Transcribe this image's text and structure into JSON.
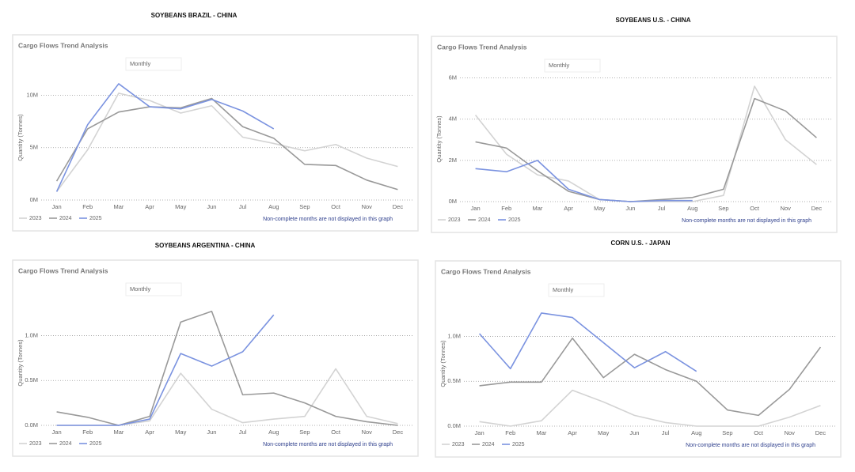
{
  "chart_data": [
    {
      "type": "line",
      "title": "SOYBEANS BRAZIL - CHINA",
      "subtitle": "Cargo Flows Trend Analysis",
      "filter": "Monthly",
      "ylabel": "Quantity (Tonnes)",
      "note": "Non-complete months are not displayed in this graph",
      "categories": [
        "Jan",
        "Feb",
        "Mar",
        "Apr",
        "May",
        "Jun",
        "Jul",
        "Aug",
        "Sep",
        "Oct",
        "Nov",
        "Dec"
      ],
      "series": [
        {
          "name": "2023",
          "color": "#d3d3d3",
          "values": [
            800000,
            4800000,
            10200000,
            9500000,
            8300000,
            9000000,
            6000000,
            5400000,
            4700000,
            5300000,
            4000000,
            3200000
          ]
        },
        {
          "name": "2024",
          "color": "#999999",
          "values": [
            1800000,
            6800000,
            8400000,
            8900000,
            8800000,
            9700000,
            7000000,
            5900000,
            3400000,
            3300000,
            1900000,
            1000000
          ]
        },
        {
          "name": "2025",
          "color": "#7b93e0",
          "values": [
            800000,
            7200000,
            11100000,
            8900000,
            8700000,
            9600000,
            8500000,
            6800000,
            null,
            null,
            null,
            null
          ]
        }
      ],
      "ylim": [
        0,
        12000000
      ],
      "yticks": [
        {
          "value": 0,
          "label": "0M"
        },
        {
          "value": 5000000,
          "label": "5M"
        },
        {
          "value": 10000000,
          "label": "10M"
        }
      ],
      "grid": true
    },
    {
      "type": "line",
      "title": "SOYBEANS U.S. - CHINA",
      "subtitle": "Cargo Flows Trend Analysis",
      "filter": "Monthly",
      "ylabel": "Quantity (Tonnes)",
      "note": "Non-complete months are not displayed in this graph",
      "categories": [
        "Jan",
        "Feb",
        "Mar",
        "Apr",
        "May",
        "Jun",
        "Jul",
        "Aug",
        "Sep",
        "Oct",
        "Nov",
        "Dec"
      ],
      "series": [
        {
          "name": "2023",
          "color": "#d3d3d3",
          "values": [
            4200000,
            2300000,
            1300000,
            1000000,
            100000,
            0,
            0,
            0,
            300000,
            5600000,
            3000000,
            1800000
          ]
        },
        {
          "name": "2024",
          "color": "#999999",
          "values": [
            2900000,
            2600000,
            1500000,
            500000,
            100000,
            0,
            100000,
            200000,
            600000,
            5000000,
            4400000,
            3100000
          ]
        },
        {
          "name": "2025",
          "color": "#7b93e0",
          "values": [
            1600000,
            1450000,
            2000000,
            600000,
            100000,
            0,
            50000,
            50000,
            null,
            null,
            null,
            null
          ]
        }
      ],
      "ylim": [
        0,
        6100000
      ],
      "yticks": [
        {
          "value": 0,
          "label": "0M"
        },
        {
          "value": 2000000,
          "label": "2M"
        },
        {
          "value": 4000000,
          "label": "4M"
        },
        {
          "value": 6000000,
          "label": "6M"
        }
      ],
      "grid": true
    },
    {
      "type": "line",
      "title": "SOYBEANS ARGENTINA - CHINA",
      "subtitle": "Cargo Flows Trend Analysis",
      "filter": "Monthly",
      "ylabel": "Quantity (Tonnes)",
      "note": "Non-complete months are not displayed in this graph",
      "categories": [
        "Jan",
        "Feb",
        "Mar",
        "Apr",
        "May",
        "Jun",
        "Jul",
        "Aug",
        "Sep",
        "Oct",
        "Nov",
        "Dec"
      ],
      "series": [
        {
          "name": "2023",
          "color": "#d3d3d3",
          "values": [
            0,
            0,
            0,
            50000,
            580000,
            180000,
            30000,
            70000,
            100000,
            630000,
            100000,
            20000
          ]
        },
        {
          "name": "2024",
          "color": "#999999",
          "values": [
            150000,
            90000,
            0,
            100000,
            1150000,
            1270000,
            340000,
            360000,
            250000,
            100000,
            40000,
            0
          ]
        },
        {
          "name": "2025",
          "color": "#7b93e0",
          "values": [
            0,
            0,
            0,
            70000,
            800000,
            660000,
            820000,
            1230000,
            null,
            null,
            null,
            null
          ]
        }
      ],
      "ylim": [
        0,
        1400000
      ],
      "yticks": [
        {
          "value": 0,
          "label": "0.0M"
        },
        {
          "value": 500000,
          "label": "0.5M"
        },
        {
          "value": 1000000,
          "label": "1.0M"
        }
      ],
      "grid": true
    },
    {
      "type": "line",
      "title": "CORN U.S. - JAPAN",
      "subtitle": "Cargo Flows Trend Analysis",
      "filter": "Monthly",
      "ylabel": "Quantity (Tonnes)",
      "note": "Non-complete months are not displayed in this graph",
      "categories": [
        "Jan",
        "Feb",
        "Mar",
        "Apr",
        "May",
        "Jun",
        "Jul",
        "Aug",
        "Sep",
        "Oct",
        "Nov",
        "Dec"
      ],
      "series": [
        {
          "name": "2023",
          "color": "#d3d3d3",
          "values": [
            50000,
            0,
            60000,
            400000,
            270000,
            120000,
            40000,
            0,
            0,
            0,
            100000,
            230000
          ]
        },
        {
          "name": "2024",
          "color": "#999999",
          "values": [
            450000,
            490000,
            490000,
            980000,
            540000,
            800000,
            630000,
            500000,
            180000,
            120000,
            410000,
            880000
          ]
        },
        {
          "name": "2025",
          "color": "#7b93e0",
          "values": [
            1030000,
            640000,
            1260000,
            1210000,
            930000,
            650000,
            830000,
            610000,
            null,
            null,
            null,
            null
          ]
        }
      ],
      "ylim": [
        0,
        1400000
      ],
      "yticks": [
        {
          "value": 0,
          "label": "0.0M"
        },
        {
          "value": 500000,
          "label": "0.5M"
        },
        {
          "value": 1000000,
          "label": "1.0M"
        }
      ],
      "grid": true
    }
  ]
}
